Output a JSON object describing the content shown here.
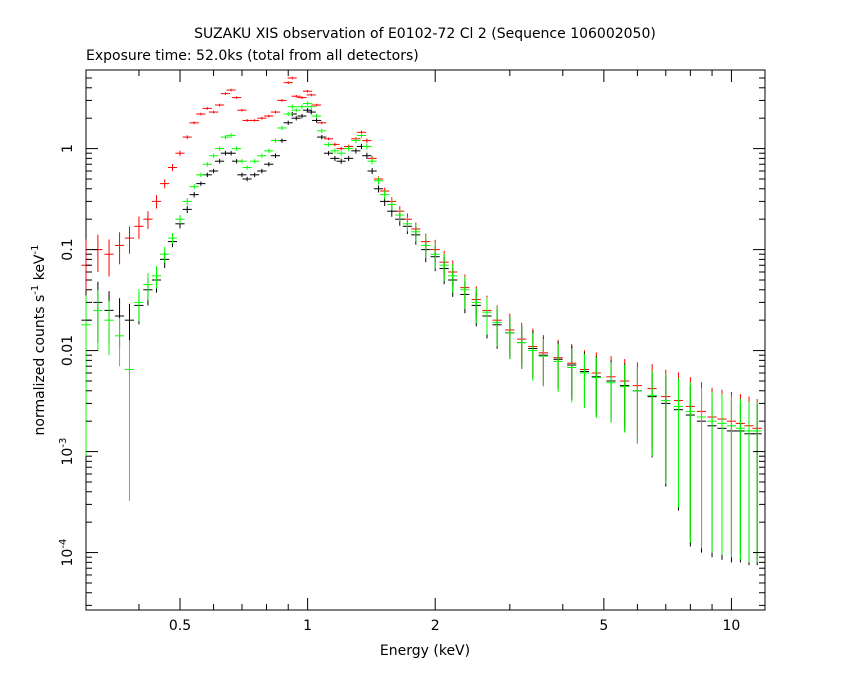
{
  "chart_data": {
    "type": "scatter",
    "title": "SUZAKU XIS observation of E0102-72 Cl 2 (Sequence 106002050)",
    "subtitle": "Exposure time: 52.0ks (total from all detectors)",
    "xlabel": "Energy (keV)",
    "ylabel_main": "normalized counts s",
    "ylabel_exp1": "-1",
    "ylabel_mid": " keV",
    "ylabel_exp2": "-1",
    "xscale": "log",
    "yscale": "log",
    "xlim": [
      0.3,
      12
    ],
    "ylim": [
      2.7e-05,
      6
    ],
    "grid": false,
    "xticks": [
      {
        "value": 0.5,
        "label": "0.5"
      },
      {
        "value": 1,
        "label": "1"
      },
      {
        "value": 2,
        "label": "2"
      },
      {
        "value": 5,
        "label": "5"
      },
      {
        "value": 10,
        "label": "10"
      }
    ],
    "yticks": [
      {
        "value": 0.0001,
        "base": "10",
        "exp": "-4"
      },
      {
        "value": 0.001,
        "base": "10",
        "exp": "-3"
      },
      {
        "value": 0.01,
        "label": "0.01"
      },
      {
        "value": 0.1,
        "label": "0.1"
      },
      {
        "value": 1,
        "label": "1"
      }
    ],
    "series": [
      {
        "color": "#ff0000",
        "x": [
          0.3,
          0.32,
          0.34,
          0.36,
          0.38,
          0.4,
          0.42,
          0.44,
          0.46,
          0.48,
          0.5,
          0.52,
          0.54,
          0.56,
          0.58,
          0.6,
          0.62,
          0.64,
          0.66,
          0.68,
          0.7,
          0.72,
          0.75,
          0.78,
          0.81,
          0.84,
          0.87,
          0.9,
          0.92,
          0.94,
          0.97,
          1.0,
          1.02,
          1.05,
          1.08,
          1.12,
          1.16,
          1.2,
          1.25,
          1.3,
          1.34,
          1.38,
          1.42,
          1.47,
          1.52,
          1.58,
          1.65,
          1.72,
          1.8,
          1.9,
          2.0,
          2.1,
          2.2,
          2.35,
          2.5,
          2.65,
          2.8,
          3.0,
          3.2,
          3.4,
          3.6,
          3.9,
          4.2,
          4.5,
          4.8,
          5.2,
          5.6,
          6.0,
          6.5,
          7.0,
          7.5,
          8.0,
          8.5,
          9.0,
          9.5,
          10.0,
          10.5,
          11.0,
          11.5
        ],
        "y": [
          0.07,
          0.1,
          0.09,
          0.11,
          0.13,
          0.17,
          0.2,
          0.3,
          0.45,
          0.65,
          0.9,
          1.3,
          1.8,
          2.2,
          2.5,
          2.3,
          2.7,
          3.5,
          3.8,
          3.2,
          2.4,
          1.9,
          1.9,
          2.0,
          2.1,
          2.3,
          3.0,
          4.5,
          5.0,
          3.3,
          3.2,
          3.7,
          3.4,
          2.7,
          1.8,
          1.25,
          1.1,
          1.0,
          1.05,
          1.25,
          1.45,
          1.2,
          0.8,
          0.5,
          0.38,
          0.3,
          0.24,
          0.2,
          0.16,
          0.12,
          0.1,
          0.075,
          0.06,
          0.042,
          0.032,
          0.025,
          0.02,
          0.016,
          0.013,
          0.011,
          0.0095,
          0.0085,
          0.0075,
          0.0065,
          0.006,
          0.0055,
          0.005,
          0.0045,
          0.0042,
          0.0035,
          0.0032,
          0.0028,
          0.0025,
          0.0022,
          0.0021,
          0.002,
          0.0019,
          0.0018,
          0.0017
        ],
        "yerr_frac": [
          0.8,
          0.4,
          0.4,
          0.35,
          0.3,
          0.25,
          0.2,
          0.15,
          0.1,
          0.08,
          0.06,
          0.04,
          0.03,
          0.03,
          0.03,
          0.03,
          0.03,
          0.03,
          0.03,
          0.03,
          0.03,
          0.03,
          0.03,
          0.03,
          0.03,
          0.03,
          0.03,
          0.03,
          0.03,
          0.03,
          0.03,
          0.03,
          0.03,
          0.03,
          0.03,
          0.03,
          0.04,
          0.04,
          0.04,
          0.04,
          0.04,
          0.05,
          0.05,
          0.06,
          0.08,
          0.1,
          0.12,
          0.14,
          0.16,
          0.2,
          0.25,
          0.3,
          0.3,
          0.35,
          0.35,
          0.4,
          0.4,
          0.45,
          0.45,
          0.5,
          0.5,
          0.5,
          0.55,
          0.55,
          0.6,
          0.6,
          0.65,
          0.7,
          0.75,
          0.85,
          0.9,
          0.95,
          0.95,
          0.95,
          0.95,
          0.95,
          0.95,
          0.95,
          0.95
        ]
      },
      {
        "color": "#000000",
        "x": [
          0.3,
          0.32,
          0.34,
          0.36,
          0.38,
          0.4,
          0.42,
          0.44,
          0.46,
          0.48,
          0.5,
          0.52,
          0.54,
          0.56,
          0.58,
          0.6,
          0.62,
          0.64,
          0.66,
          0.68,
          0.7,
          0.72,
          0.75,
          0.78,
          0.81,
          0.84,
          0.87,
          0.9,
          0.92,
          0.94,
          0.97,
          1.0,
          1.02,
          1.05,
          1.08,
          1.12,
          1.16,
          1.2,
          1.25,
          1.3,
          1.34,
          1.38,
          1.42,
          1.47,
          1.52,
          1.58,
          1.65,
          1.72,
          1.8,
          1.9,
          2.0,
          2.1,
          2.2,
          2.35,
          2.5,
          2.65,
          2.8,
          3.0,
          3.2,
          3.4,
          3.6,
          3.9,
          4.2,
          4.5,
          4.8,
          5.2,
          5.6,
          6.0,
          6.5,
          7.0,
          7.5,
          8.0,
          8.5,
          9.0,
          9.5,
          10.0,
          10.5,
          11.0,
          11.5
        ],
        "y": [
          0.02,
          0.03,
          0.025,
          0.022,
          0.02,
          0.028,
          0.04,
          0.05,
          0.08,
          0.12,
          0.18,
          0.25,
          0.35,
          0.45,
          0.55,
          0.6,
          0.75,
          0.9,
          0.9,
          0.75,
          0.55,
          0.5,
          0.55,
          0.6,
          0.7,
          0.85,
          1.2,
          1.8,
          2.2,
          2.0,
          2.1,
          2.4,
          2.3,
          1.9,
          1.3,
          0.9,
          0.8,
          0.75,
          0.8,
          0.95,
          1.05,
          0.85,
          0.6,
          0.4,
          0.3,
          0.24,
          0.2,
          0.17,
          0.14,
          0.1,
          0.085,
          0.065,
          0.05,
          0.036,
          0.028,
          0.022,
          0.018,
          0.015,
          0.012,
          0.0105,
          0.009,
          0.0082,
          0.0072,
          0.0062,
          0.0055,
          0.005,
          0.0045,
          0.004,
          0.0035,
          0.003,
          0.0026,
          0.0023,
          0.002,
          0.0018,
          0.0017,
          0.0016,
          0.0016,
          0.0015,
          0.0015
        ],
        "yerr_frac": [
          0.95,
          0.6,
          0.55,
          0.5,
          0.45,
          0.35,
          0.3,
          0.25,
          0.18,
          0.12,
          0.1,
          0.08,
          0.06,
          0.05,
          0.05,
          0.05,
          0.05,
          0.05,
          0.05,
          0.05,
          0.05,
          0.05,
          0.05,
          0.05,
          0.05,
          0.05,
          0.05,
          0.05,
          0.05,
          0.05,
          0.05,
          0.05,
          0.05,
          0.05,
          0.05,
          0.05,
          0.06,
          0.06,
          0.06,
          0.06,
          0.06,
          0.07,
          0.07,
          0.08,
          0.1,
          0.12,
          0.14,
          0.16,
          0.2,
          0.25,
          0.28,
          0.3,
          0.32,
          0.35,
          0.38,
          0.4,
          0.42,
          0.45,
          0.45,
          0.5,
          0.5,
          0.5,
          0.55,
          0.55,
          0.6,
          0.6,
          0.65,
          0.7,
          0.75,
          0.85,
          0.9,
          0.95,
          0.95,
          0.95,
          0.95,
          0.95,
          0.95,
          0.95,
          0.95
        ]
      },
      {
        "color": "#00ff00",
        "x": [
          0.3,
          0.32,
          0.34,
          0.36,
          0.38,
          0.4,
          0.42,
          0.44,
          0.46,
          0.48,
          0.5,
          0.52,
          0.54,
          0.56,
          0.58,
          0.6,
          0.62,
          0.64,
          0.66,
          0.68,
          0.7,
          0.72,
          0.75,
          0.78,
          0.81,
          0.84,
          0.87,
          0.9,
          0.92,
          0.94,
          0.97,
          1.0,
          1.02,
          1.05,
          1.08,
          1.12,
          1.16,
          1.2,
          1.25,
          1.3,
          1.34,
          1.38,
          1.42,
          1.47,
          1.52,
          1.58,
          1.65,
          1.72,
          1.8,
          1.9,
          2.0,
          2.1,
          2.2,
          2.35,
          2.5,
          2.65,
          2.8,
          3.0,
          3.2,
          3.4,
          3.6,
          3.9,
          4.2,
          4.5,
          4.8,
          5.2,
          5.6,
          6.0,
          6.5,
          7.0,
          7.5,
          8.0,
          8.5,
          9.0,
          9.5,
          10.0,
          10.5,
          11.0,
          11.5
        ],
        "y": [
          0.018,
          0.025,
          0.02,
          0.014,
          0.0065,
          0.03,
          0.045,
          0.055,
          0.09,
          0.13,
          0.2,
          0.3,
          0.42,
          0.55,
          0.7,
          0.85,
          1.0,
          1.3,
          1.35,
          1.0,
          0.75,
          0.65,
          0.75,
          0.85,
          0.95,
          1.2,
          1.6,
          2.2,
          2.6,
          2.4,
          2.6,
          2.8,
          2.6,
          2.1,
          1.5,
          1.1,
          0.95,
          0.9,
          1.0,
          1.2,
          1.35,
          1.05,
          0.75,
          0.48,
          0.35,
          0.28,
          0.22,
          0.18,
          0.15,
          0.11,
          0.09,
          0.07,
          0.055,
          0.04,
          0.03,
          0.024,
          0.019,
          0.015,
          0.012,
          0.01,
          0.0088,
          0.0078,
          0.0068,
          0.006,
          0.0054,
          0.0048,
          0.0044,
          0.004,
          0.0036,
          0.0032,
          0.0028,
          0.0025,
          0.0022,
          0.002,
          0.0019,
          0.0018,
          0.0017,
          0.0016,
          0.0016
        ],
        "yerr_frac": [
          0.95,
          0.6,
          0.55,
          0.5,
          0.95,
          0.35,
          0.3,
          0.25,
          0.18,
          0.12,
          0.1,
          0.08,
          0.06,
          0.05,
          0.05,
          0.05,
          0.05,
          0.05,
          0.05,
          0.05,
          0.05,
          0.05,
          0.05,
          0.05,
          0.05,
          0.05,
          0.05,
          0.05,
          0.05,
          0.05,
          0.05,
          0.05,
          0.05,
          0.05,
          0.05,
          0.05,
          0.06,
          0.06,
          0.06,
          0.06,
          0.06,
          0.07,
          0.07,
          0.08,
          0.1,
          0.12,
          0.14,
          0.16,
          0.2,
          0.25,
          0.28,
          0.3,
          0.32,
          0.35,
          0.38,
          0.4,
          0.42,
          0.45,
          0.45,
          0.5,
          0.5,
          0.5,
          0.55,
          0.55,
          0.6,
          0.6,
          0.65,
          0.7,
          0.75,
          0.85,
          0.9,
          0.95,
          0.95,
          0.95,
          0.95,
          0.95,
          0.95,
          0.95,
          0.95
        ]
      }
    ]
  }
}
